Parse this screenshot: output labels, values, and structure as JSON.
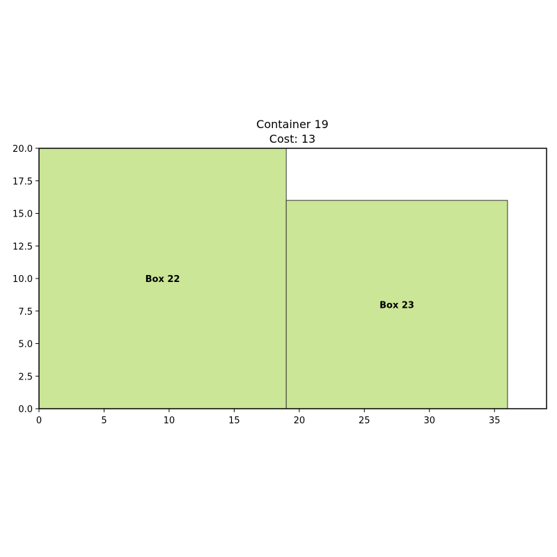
{
  "chart_data": {
    "type": "bar",
    "title": "Container 19",
    "subtitle": "Cost: 13",
    "xlabel": "",
    "ylabel": "",
    "xlim": [
      0,
      39
    ],
    "ylim": [
      0,
      20
    ],
    "x_ticks": [
      0,
      5,
      10,
      15,
      20,
      25,
      30,
      35
    ],
    "x_tick_labels": [
      "0",
      "5",
      "10",
      "15",
      "20",
      "25",
      "30",
      "35"
    ],
    "y_ticks": [
      0,
      2.5,
      5,
      7.5,
      10,
      12.5,
      15,
      17.5,
      20
    ],
    "y_tick_labels": [
      "0.0",
      "2.5",
      "5.0",
      "7.5",
      "10.0",
      "12.5",
      "15.0",
      "17.5",
      "20.0"
    ],
    "grid": false,
    "boxes": [
      {
        "label": "Box 22",
        "x": 0,
        "y": 0,
        "width": 19,
        "height": 20
      },
      {
        "label": "Box 23",
        "x": 19,
        "y": 0,
        "width": 17,
        "height": 16
      }
    ],
    "colors": {
      "box_fill": "#cbe696",
      "box_edge": "#333333",
      "axes": "#000000"
    }
  }
}
